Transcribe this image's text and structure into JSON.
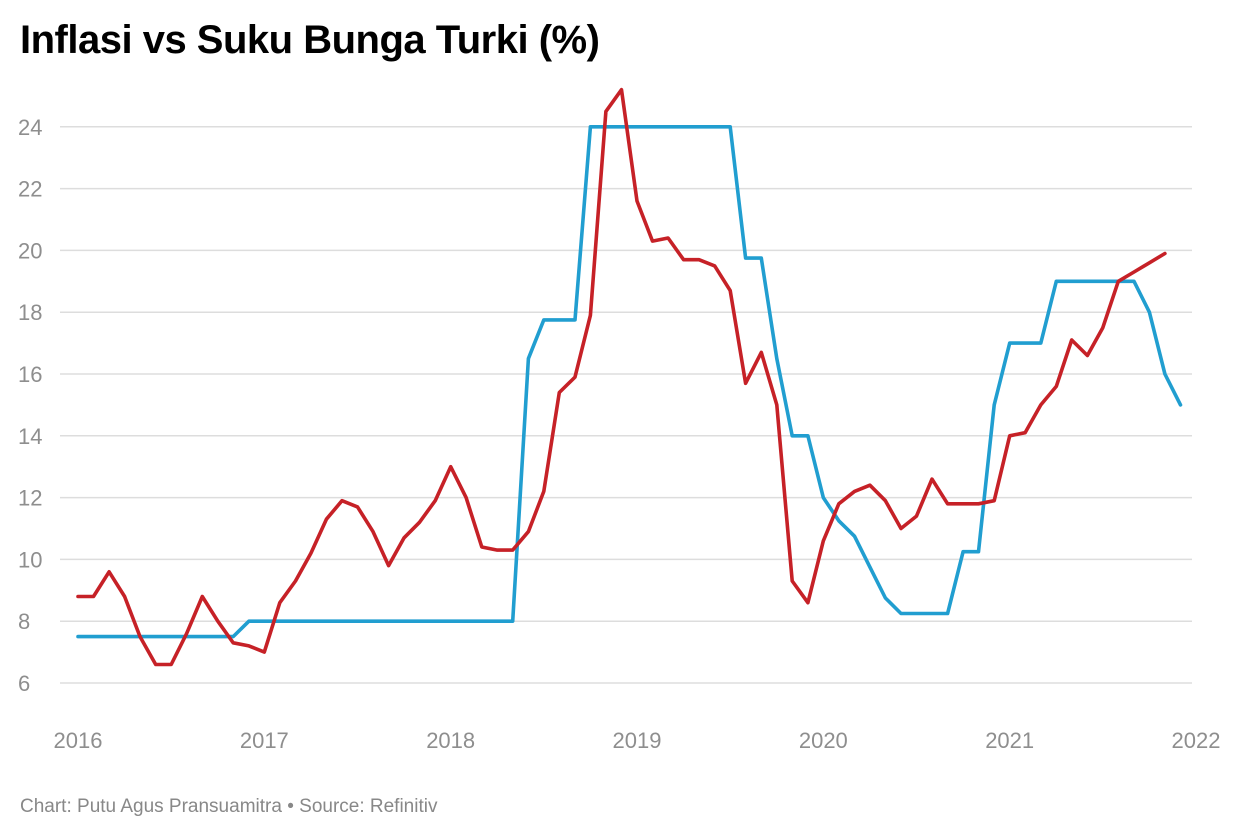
{
  "title": "Inflasi vs Suku Bunga Turki (%)",
  "footer": {
    "credit": "Chart: Putu Agus Pransuamitra",
    "separator": "•",
    "source": "Source: Refinitiv"
  },
  "colors": {
    "inflation": "#c62127",
    "interest_rate": "#219ed0",
    "grid": "#dddddd",
    "tick_label": "#8e8e8e"
  },
  "chart_data": {
    "type": "line",
    "title": "Inflasi vs Suku Bunga Turki (%)",
    "xlabel": "",
    "ylabel": "",
    "xlim": [
      2016.0,
      2022.0
    ],
    "ylim": [
      5,
      25
    ],
    "x_ticks": [
      "2016",
      "2017",
      "2018",
      "2019",
      "2020",
      "2021",
      "2022"
    ],
    "y_ticks": [
      6,
      8,
      10,
      12,
      14,
      16,
      18,
      20,
      22,
      24
    ],
    "grid": true,
    "legend": "none",
    "series": [
      {
        "key": "inflation",
        "points": [
          [
            2016.0,
            8.8
          ],
          [
            2016.083,
            8.8
          ],
          [
            2016.167,
            9.6
          ],
          [
            2016.25,
            8.8
          ],
          [
            2016.333,
            7.5
          ],
          [
            2016.417,
            6.6
          ],
          [
            2016.5,
            6.6
          ],
          [
            2016.583,
            7.6
          ],
          [
            2016.667,
            8.8
          ],
          [
            2016.75,
            8.0
          ],
          [
            2016.833,
            7.3
          ],
          [
            2016.917,
            7.2
          ],
          [
            2017.0,
            7.0
          ],
          [
            2017.083,
            8.6
          ],
          [
            2017.167,
            9.3
          ],
          [
            2017.25,
            10.2
          ],
          [
            2017.333,
            11.3
          ],
          [
            2017.417,
            11.9
          ],
          [
            2017.5,
            11.7
          ],
          [
            2017.583,
            10.9
          ],
          [
            2017.667,
            9.8
          ],
          [
            2017.75,
            10.7
          ],
          [
            2017.833,
            11.2
          ],
          [
            2017.917,
            11.9
          ],
          [
            2018.0,
            13.0
          ],
          [
            2018.083,
            12.0
          ],
          [
            2018.167,
            10.4
          ],
          [
            2018.25,
            10.3
          ],
          [
            2018.333,
            10.3
          ],
          [
            2018.417,
            10.9
          ],
          [
            2018.5,
            12.2
          ],
          [
            2018.583,
            15.4
          ],
          [
            2018.667,
            15.9
          ],
          [
            2018.75,
            17.9
          ],
          [
            2018.833,
            24.5
          ],
          [
            2018.917,
            25.2
          ],
          [
            2019.0,
            21.6
          ],
          [
            2019.083,
            20.3
          ],
          [
            2019.167,
            20.4
          ],
          [
            2019.25,
            19.7
          ],
          [
            2019.333,
            19.7
          ],
          [
            2019.417,
            19.5
          ],
          [
            2019.5,
            18.7
          ],
          [
            2019.583,
            15.7
          ],
          [
            2019.667,
            16.7
          ],
          [
            2019.75,
            15.0
          ],
          [
            2019.833,
            9.3
          ],
          [
            2019.917,
            8.6
          ],
          [
            2020.0,
            10.6
          ],
          [
            2020.083,
            11.8
          ],
          [
            2020.167,
            12.2
          ],
          [
            2020.25,
            12.4
          ],
          [
            2020.333,
            11.9
          ],
          [
            2020.417,
            11.0
          ],
          [
            2020.5,
            11.4
          ],
          [
            2020.583,
            12.6
          ],
          [
            2020.667,
            11.8
          ],
          [
            2020.75,
            11.8
          ],
          [
            2020.833,
            11.8
          ],
          [
            2020.917,
            11.9
          ],
          [
            2021.0,
            14.0
          ],
          [
            2021.083,
            14.1
          ],
          [
            2021.167,
            15.0
          ],
          [
            2021.25,
            15.6
          ],
          [
            2021.333,
            17.1
          ],
          [
            2021.417,
            16.6
          ],
          [
            2021.5,
            17.5
          ],
          [
            2021.583,
            19.0
          ],
          [
            2021.667,
            19.3
          ],
          [
            2021.75,
            19.6
          ],
          [
            2021.833,
            19.9
          ]
        ]
      },
      {
        "key": "interest_rate",
        "points": [
          [
            2016.0,
            7.5
          ],
          [
            2016.833,
            7.5
          ],
          [
            2016.917,
            8.0
          ],
          [
            2018.333,
            8.0
          ],
          [
            2018.417,
            16.5
          ],
          [
            2018.5,
            17.75
          ],
          [
            2018.667,
            17.75
          ],
          [
            2018.75,
            24.0
          ],
          [
            2019.5,
            24.0
          ],
          [
            2019.583,
            19.75
          ],
          [
            2019.667,
            19.75
          ],
          [
            2019.75,
            16.5
          ],
          [
            2019.833,
            14.0
          ],
          [
            2019.917,
            14.0
          ],
          [
            2020.0,
            12.0
          ],
          [
            2020.083,
            11.25
          ],
          [
            2020.167,
            10.75
          ],
          [
            2020.25,
            9.75
          ],
          [
            2020.333,
            8.75
          ],
          [
            2020.417,
            8.25
          ],
          [
            2020.667,
            8.25
          ],
          [
            2020.75,
            10.25
          ],
          [
            2020.833,
            10.25
          ],
          [
            2020.917,
            15.0
          ],
          [
            2021.0,
            17.0
          ],
          [
            2021.167,
            17.0
          ],
          [
            2021.25,
            19.0
          ],
          [
            2021.667,
            19.0
          ],
          [
            2021.75,
            18.0
          ],
          [
            2021.833,
            16.0
          ],
          [
            2021.917,
            15.0
          ]
        ]
      }
    ]
  }
}
